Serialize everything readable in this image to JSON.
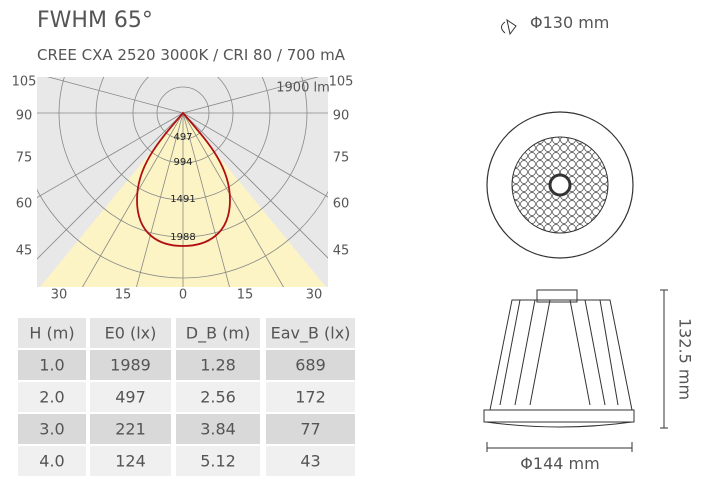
{
  "header": {
    "title": "FWHM  65°",
    "subtitle": "CREE CXA 2520 3000K / CRI 80 / 700 mA"
  },
  "polar": {
    "flux": "1900 lm",
    "left_labels": [
      "105",
      "90",
      "75",
      "60",
      "45"
    ],
    "right_labels": [
      "105",
      "90",
      "75",
      "60",
      "45"
    ],
    "bottom_labels": [
      "30",
      "15",
      "0",
      "15",
      "30"
    ],
    "ring_labels": [
      "497",
      "994",
      "1491",
      "1988"
    ]
  },
  "table": {
    "header": [
      "H (m)",
      "E0 (lx)",
      "D_B (m)",
      "Eav_B (lx)"
    ],
    "rows": [
      [
        "1.0",
        "1989",
        "1.28",
        "689"
      ],
      [
        "2.0",
        "497",
        "2.56",
        "172"
      ],
      [
        "3.0",
        "221",
        "3.84",
        "77"
      ],
      [
        "4.0",
        "124",
        "5.12",
        "43"
      ]
    ]
  },
  "drawing": {
    "top_diameter": "Φ130 mm",
    "bottom_diameter": "Φ144 mm",
    "height": "132.5 mm"
  }
}
